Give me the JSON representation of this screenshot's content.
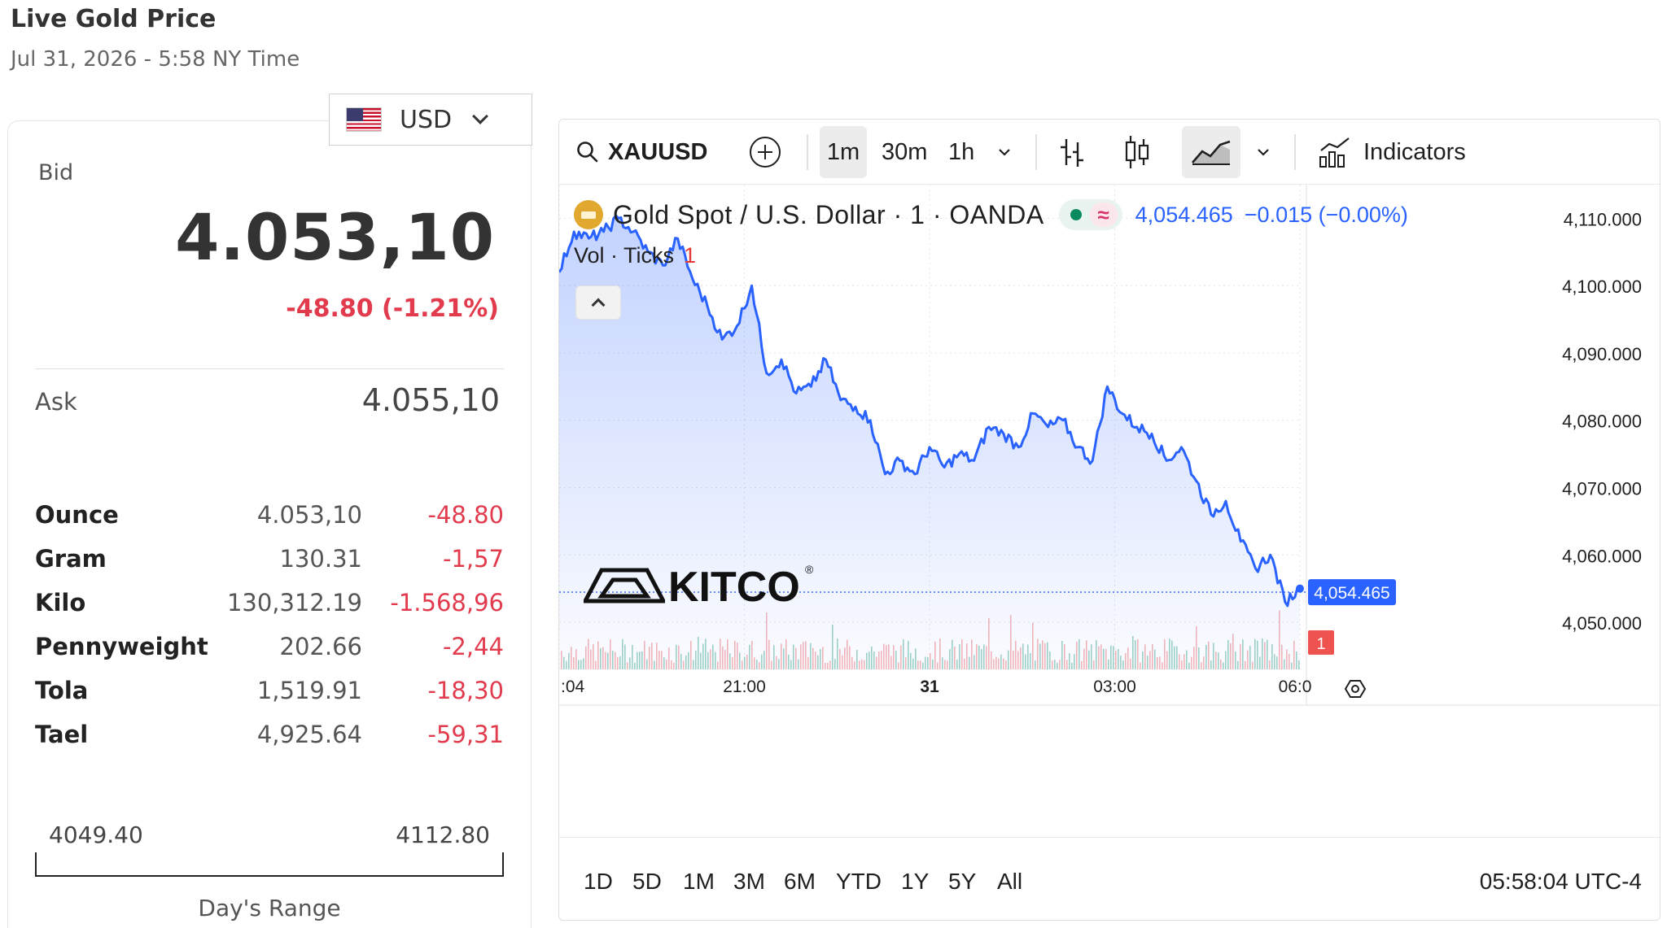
{
  "header": {
    "title": "Live Gold Price",
    "date": "Jul 31, 2026 - 5:58 NY Time"
  },
  "currency": {
    "selected": "USD",
    "flag_icon": "us-flag-icon"
  },
  "quote": {
    "bid_label": "Bid",
    "bid_value": "4.053,10",
    "bid_change": "-48.80 (-1.21%)",
    "ask_label": "Ask",
    "ask_value": "4.055,10"
  },
  "units": [
    {
      "name": "Ounce",
      "price": "4.053,10",
      "change": "-48.80"
    },
    {
      "name": "Gram",
      "price": "130.31",
      "change": "-1,57"
    },
    {
      "name": "Kilo",
      "price": "130,312.19",
      "change": "-1.568,96"
    },
    {
      "name": "Pennyweight",
      "price": "202.66",
      "change": "-2,44"
    },
    {
      "name": "Tola",
      "price": "1,519.91",
      "change": "-18,30"
    },
    {
      "name": "Tael",
      "price": "4,925.64",
      "change": "-59,31"
    }
  ],
  "day_range": {
    "low": "4049.40",
    "high": "4112.80",
    "label": "Day's Range"
  },
  "toolbar": {
    "symbol": "XAUUSD",
    "intervals": [
      "1m",
      "30m",
      "1h"
    ],
    "active_interval": "1m",
    "indicators_label": "Indicators"
  },
  "legend": {
    "symbol_name": "Gold Spot / U.S. Dollar · 1 · OANDA",
    "wave_glyph": "≈",
    "last": "4,054.465",
    "change": "−0.015 (−0.00%)",
    "vol_label": "Vol · Ticks",
    "vol_value": "1"
  },
  "watermark": {
    "text": "KITCO",
    "mark": "®"
  },
  "timeframes": [
    "1D",
    "5D",
    "1M",
    "3M",
    "6M",
    "YTD",
    "1Y",
    "5Y",
    "All"
  ],
  "clock": "05:58:04 UTC-4",
  "colors": {
    "line": "#2962ff",
    "negative": "#e23b4e",
    "price_tag": "#2962ff",
    "vol_tag": "#ef5350"
  },
  "chart_data": {
    "type": "area",
    "x_ticks": [
      ":04",
      "21:00",
      "31",
      "03:00",
      "06:0"
    ],
    "y_ticks": [
      "4,110.000",
      "4,100.000",
      "4,090.000",
      "4,080.000",
      "4,070.000",
      "4,060.000",
      "4,050.000"
    ],
    "ylim": [
      4043,
      4115
    ],
    "last_price_label": "4,054.465",
    "last_volume_label": "1",
    "series": [
      {
        "x": [
          0,
          2,
          4,
          6,
          8,
          10,
          12,
          14,
          16,
          18,
          20,
          22,
          24,
          26,
          28,
          30,
          32,
          34,
          36,
          38,
          40,
          42,
          44,
          46,
          48,
          50,
          52,
          54,
          56,
          58,
          60,
          62,
          64,
          66,
          68,
          70,
          72,
          74,
          76,
          78,
          80,
          82,
          84,
          86,
          88,
          90,
          92,
          94,
          96,
          98,
          100
        ],
        "values": [
          4102,
          4108,
          4107,
          4108,
          4110,
          4108,
          4105,
          4103,
          4107,
          4101,
          4097,
          4092,
          4094,
          4100,
          4087,
          4089,
          4084,
          4085,
          4089,
          4083,
          4082,
          4080,
          4072,
          4074,
          4072,
          4076,
          4073,
          4075,
          4074,
          4079,
          4078,
          4076,
          4081,
          4079,
          4080,
          4076,
          4074,
          4085,
          4081,
          4079,
          4078,
          4074,
          4076,
          4071,
          4066,
          4068,
          4062,
          4058,
          4060,
          4053,
          4055
        ]
      }
    ]
  }
}
